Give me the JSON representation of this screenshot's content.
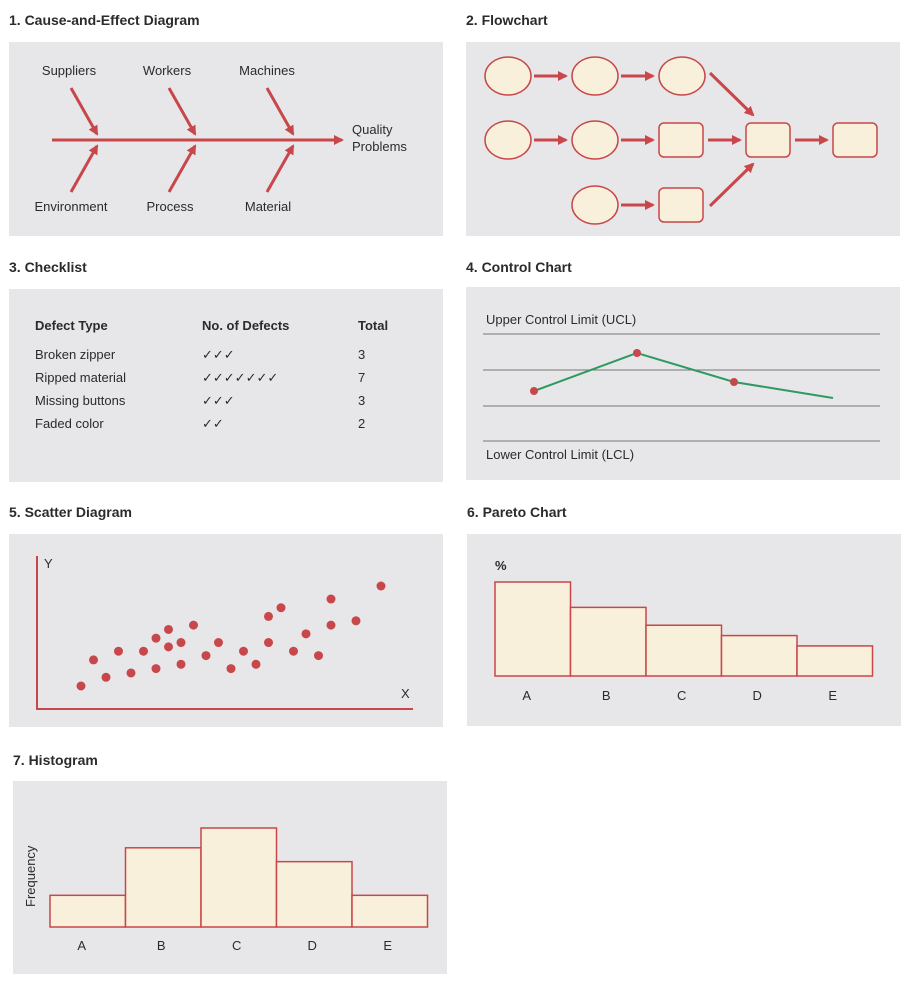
{
  "titles": {
    "cause_effect": "1. Cause-and-Effect Diagram",
    "flowchart": "2. Flowchart",
    "checklist": "3. Checklist",
    "control": "4. Control Chart",
    "scatter": "5. Scatter Diagram",
    "pareto": "6. Pareto Chart",
    "histogram": "7. Histogram"
  },
  "colors": {
    "panel": "#e7e7e9",
    "accent": "#c8474b",
    "fill": "#f8f0da",
    "line": "#2e9a62",
    "grid": "#777777"
  },
  "cause_effect": {
    "top_causes": [
      "Suppliers",
      "Workers",
      "Machines"
    ],
    "bottom_causes": [
      "Environment",
      "Process",
      "Material"
    ],
    "effect_line1": "Quality",
    "effect_line2": "Problems"
  },
  "checklist": {
    "headers": [
      "Defect Type",
      "No. of Defects",
      "Total"
    ],
    "rows": [
      [
        "Broken zipper",
        "✓✓✓",
        "3"
      ],
      [
        "Ripped material",
        "✓✓✓✓✓✓✓",
        "7"
      ],
      [
        "Missing buttons",
        "✓✓✓",
        "3"
      ],
      [
        "Faded color",
        "✓✓",
        "2"
      ]
    ]
  },
  "control_chart": {
    "ucl_label": "Upper Control Limit (UCL)",
    "lcl_label": "Lower Control Limit (LCL)"
  },
  "chart_data": [
    {
      "type": "scatter",
      "title": "5. Scatter Diagram",
      "xlabel": "X",
      "ylabel": "Y",
      "points": [
        [
          1,
          1
        ],
        [
          2,
          4
        ],
        [
          3,
          2
        ],
        [
          4,
          5
        ],
        [
          5,
          2.5
        ],
        [
          6,
          5
        ],
        [
          7,
          6.5
        ],
        [
          7,
          3
        ],
        [
          8,
          5.5
        ],
        [
          8,
          7.5
        ],
        [
          9,
          3.5
        ],
        [
          9,
          6
        ],
        [
          10,
          8
        ],
        [
          11,
          4.5
        ],
        [
          12,
          6
        ],
        [
          13,
          3
        ],
        [
          14,
          5
        ],
        [
          15,
          3.5
        ],
        [
          16,
          9
        ],
        [
          16,
          6
        ],
        [
          17,
          10
        ],
        [
          18,
          5
        ],
        [
          19,
          7
        ],
        [
          20,
          4.5
        ],
        [
          21,
          11
        ],
        [
          21,
          8
        ],
        [
          23,
          8.5
        ],
        [
          25,
          12.5
        ]
      ]
    },
    {
      "type": "bar",
      "title": "6. Pareto Chart",
      "ylabel": "%",
      "categories": [
        "A",
        "B",
        "C",
        "D",
        "E"
      ],
      "values": [
        100,
        73,
        54,
        43,
        32
      ]
    },
    {
      "type": "bar",
      "title": "7. Histogram",
      "ylabel": "Frequency",
      "categories": [
        "A",
        "B",
        "C",
        "D",
        "E"
      ],
      "values": [
        32,
        80,
        100,
        66,
        32
      ]
    }
  ]
}
